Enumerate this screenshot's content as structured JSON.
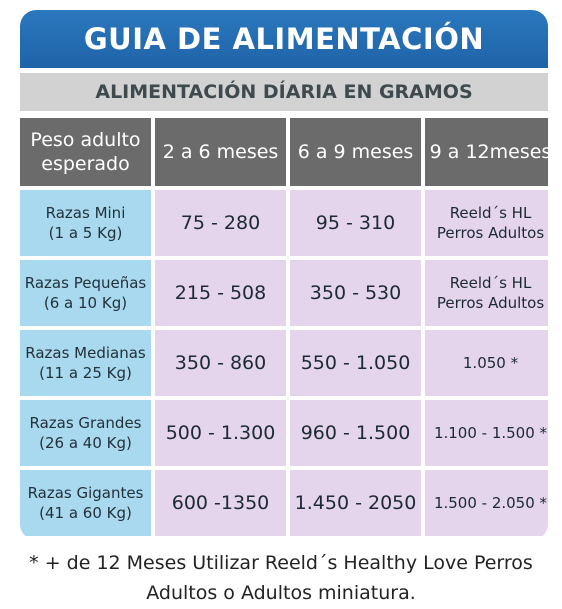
{
  "title": "GUIA DE ALIMENTACIÓN",
  "subtitle": "ALIMENTACIÓN DÍARIA EN GRAMOS",
  "headers": [
    "Peso adulto esperado",
    "2 a 6 meses",
    "6 a 9 meses",
    "9 a 12meses"
  ],
  "header_lines": {
    "h0_line1": "Peso adulto",
    "h0_line2": "esperado"
  },
  "rows": [
    {
      "breed_line1": "Razas Mini",
      "breed_line2": "(1 a 5 Kg)",
      "c1": "75 - 280",
      "c2": "95 - 310",
      "c3_line1": "Reeld´s HL",
      "c3_line2": "Perros Adultos"
    },
    {
      "breed_line1": "Razas Pequeñas",
      "breed_line2": "(6 a 10 Kg)",
      "c1": "215 - 508",
      "c2": "350 - 530",
      "c3_line1": "Reeld´s HL",
      "c3_line2": "Perros Adultos"
    },
    {
      "breed_line1": "Razas Medianas",
      "breed_line2": "(11 a 25 Kg)",
      "c1": "350 - 860",
      "c2": "550 - 1.050",
      "c3": "1.050 *"
    },
    {
      "breed_line1": "Razas Grandes",
      "breed_line2": "(26 a 40 Kg)",
      "c1": "500 - 1.300",
      "c2": "960 - 1.500",
      "c3": "1.100 - 1.500 *"
    },
    {
      "breed_line1": "Razas Gigantes",
      "breed_line2": "(41 a 60 Kg)",
      "c1": "600 -1350",
      "c2": "1.450 - 2050",
      "c3": "1.500 - 2.050 *"
    }
  ],
  "footnote_line1": "* + de 12 Meses Utilizar Reeld´s Healthy Love Perros",
  "footnote_line2": "Adultos o Adultos miniatura.",
  "colors": {
    "title_bg": "#1f63a8",
    "subtitle_bg": "#d2d2d2",
    "header_bg": "#6b6b6b",
    "breed_bg": "#a8d9ef",
    "value_bg": "#e4d4ec"
  }
}
